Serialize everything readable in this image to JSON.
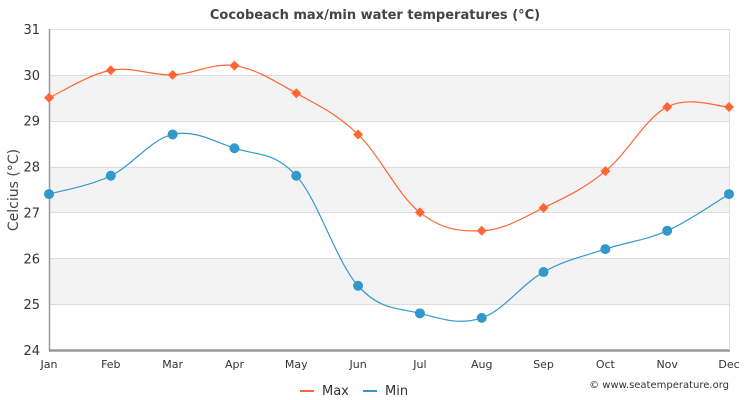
{
  "chart_data": {
    "type": "line",
    "title": "Cocobeach max/min water temperatures (°C)",
    "xlabel": "",
    "ylabel": "Celcius (°C)",
    "categories": [
      "Jan",
      "Feb",
      "Mar",
      "Apr",
      "May",
      "Jun",
      "Jul",
      "Aug",
      "Sep",
      "Oct",
      "Nov",
      "Dec"
    ],
    "ylim": [
      24,
      31
    ],
    "yticks": [
      "24",
      "25",
      "26",
      "27",
      "28",
      "29",
      "30",
      "31"
    ],
    "grid": true,
    "legend_position": "bottom-center",
    "series": [
      {
        "name": "Max",
        "color": "#ff6633",
        "marker": "diamond",
        "values": [
          29.5,
          30.1,
          30.0,
          30.2,
          29.6,
          28.7,
          27.0,
          26.6,
          27.1,
          27.9,
          29.3,
          29.3
        ]
      },
      {
        "name": "Min",
        "color": "#3399cc",
        "marker": "circle",
        "values": [
          27.4,
          27.8,
          28.7,
          28.4,
          27.8,
          25.4,
          24.8,
          24.7,
          25.7,
          26.2,
          26.6,
          27.4
        ]
      }
    ],
    "credit": "© www.seatemperature.org"
  }
}
